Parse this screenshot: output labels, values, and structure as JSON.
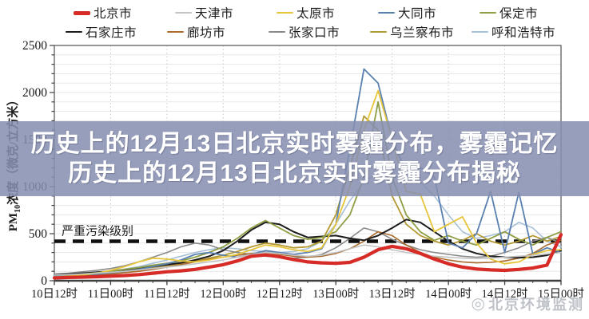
{
  "overlay": {
    "line1": "历史上的12月13日北京实时雾霾分布，雾霾记忆",
    "line2": "历史上的12月13日北京实时雾霾分布揭秘"
  },
  "watermark": {
    "text": "北京环境监测",
    "icon": "circle-logo-icon"
  },
  "y_axis_title": {
    "prefix": "PM",
    "sub": "10",
    "suffix": "浓度（微克/立方米）"
  },
  "chart_data": {
    "type": "line",
    "title": "",
    "xlabel": "",
    "ylabel": "PM10浓度（微克/立方米）",
    "ylim": [
      0,
      2500
    ],
    "ytick_interval": 500,
    "grid": true,
    "legend_position": "top",
    "threshold": {
      "label": "严重污染级别",
      "value": 420
    },
    "x_hours": [
      0,
      3,
      6,
      9,
      12,
      15,
      18,
      21,
      24,
      27,
      30,
      33,
      36,
      39,
      42,
      45,
      48,
      51,
      54,
      57,
      60,
      63,
      66,
      69,
      72,
      75,
      78,
      81,
      84,
      87,
      90,
      93,
      96,
      99,
      102,
      105,
      108
    ],
    "x_tick_hours": [
      0,
      12,
      24,
      36,
      48,
      60,
      72,
      84,
      96,
      108
    ],
    "x_tick_labels": [
      "10日12时",
      "11日00时",
      "11日12时",
      "12日00时",
      "12日12时",
      "13日00时",
      "13日12时",
      "14日00时",
      "14日12时",
      "15日00时"
    ],
    "series": [
      {
        "name": "北京市",
        "color": "#d62b27",
        "width": 4.2,
        "values": [
          30,
          35,
          38,
          42,
          48,
          55,
          65,
          80,
          95,
          105,
          120,
          145,
          170,
          210,
          260,
          275,
          255,
          225,
          200,
          190,
          185,
          195,
          250,
          330,
          365,
          340,
          290,
          230,
          180,
          145,
          125,
          115,
          110,
          120,
          135,
          165,
          490
        ]
      },
      {
        "name": "天津市",
        "color": "#c3c3c3",
        "width": 1.6,
        "values": [
          60,
          65,
          72,
          80,
          90,
          100,
          115,
          130,
          145,
          160,
          180,
          200,
          220,
          250,
          280,
          300,
          290,
          270,
          260,
          270,
          300,
          340,
          380,
          360,
          330,
          300,
          280,
          260,
          250,
          240,
          235,
          240,
          250,
          260,
          270,
          285,
          300
        ]
      },
      {
        "name": "太原市",
        "color": "#e7c63b",
        "width": 1.8,
        "values": [
          40,
          50,
          60,
          80,
          110,
          150,
          200,
          240,
          230,
          210,
          200,
          220,
          250,
          280,
          330,
          380,
          360,
          330,
          310,
          350,
          600,
          1000,
          1600,
          2020,
          1500,
          950,
          920,
          520,
          600,
          680,
          400,
          230,
          180,
          200,
          280,
          320,
          330
        ]
      },
      {
        "name": "大同市",
        "color": "#5a80b0",
        "width": 1.8,
        "values": [
          50,
          55,
          60,
          70,
          85,
          100,
          120,
          150,
          180,
          220,
          280,
          300,
          270,
          250,
          280,
          320,
          300,
          280,
          300,
          340,
          600,
          1400,
          2250,
          2100,
          1500,
          1150,
          1200,
          1100,
          400,
          350,
          500,
          950,
          300,
          940,
          280,
          350,
          300
        ]
      },
      {
        "name": "保定市",
        "color": "#8f9e44",
        "width": 1.8,
        "values": [
          55,
          60,
          70,
          85,
          100,
          120,
          140,
          165,
          185,
          210,
          250,
          300,
          360,
          450,
          560,
          640,
          560,
          480,
          440,
          460,
          520,
          700,
          1100,
          1900,
          1100,
          700,
          520,
          430,
          480,
          420,
          380,
          450,
          520,
          440,
          380,
          460,
          520
        ]
      },
      {
        "name": "石家庄市",
        "color": "#1c1c1c",
        "width": 2.0,
        "values": [
          60,
          70,
          80,
          90,
          100,
          115,
          130,
          150,
          170,
          190,
          220,
          260,
          320,
          420,
          540,
          620,
          600,
          520,
          460,
          470,
          480,
          450,
          430,
          480,
          560,
          650,
          620,
          520,
          420,
          340,
          290,
          260,
          250,
          245,
          250,
          270,
          320
        ]
      },
      {
        "name": "廊坊市",
        "color": "#aa6b2d",
        "width": 1.6,
        "values": [
          40,
          45,
          52,
          60,
          70,
          85,
          100,
          120,
          145,
          170,
          200,
          230,
          250,
          270,
          290,
          300,
          280,
          260,
          250,
          260,
          290,
          340,
          420,
          520,
          480,
          380,
          300,
          250,
          220,
          200,
          190,
          195,
          210,
          240,
          290,
          380,
          430
        ]
      },
      {
        "name": "张家口市",
        "color": "#8a8a8a",
        "width": 1.6,
        "values": [
          70,
          80,
          95,
          110,
          130,
          160,
          200,
          250,
          300,
          360,
          400,
          380,
          330,
          300,
          280,
          260,
          250,
          240,
          250,
          280,
          350,
          450,
          560,
          520,
          440,
          380,
          330,
          300,
          280,
          260,
          250,
          260,
          300,
          350,
          420,
          460,
          400
        ]
      },
      {
        "name": "乌兰察布市",
        "color": "#b49a35",
        "width": 1.8,
        "values": [
          45,
          50,
          58,
          68,
          80,
          95,
          115,
          140,
          160,
          180,
          210,
          240,
          270,
          310,
          360,
          400,
          380,
          350,
          360,
          420,
          700,
          1200,
          1750,
          1600,
          900,
          600,
          480,
          420,
          380,
          430,
          500,
          420,
          380,
          420,
          480,
          420,
          470
        ]
      },
      {
        "name": "呼和浩特市",
        "color": "#a7c0d8",
        "width": 1.6,
        "values": [
          65,
          72,
          80,
          92,
          105,
          125,
          150,
          185,
          220,
          260,
          300,
          330,
          350,
          340,
          320,
          310,
          300,
          310,
          340,
          420,
          600,
          850,
          1050,
          1150,
          1180,
          1120,
          1050,
          900,
          700,
          520,
          450,
          480,
          520,
          620,
          560,
          420,
          360
        ]
      }
    ]
  }
}
